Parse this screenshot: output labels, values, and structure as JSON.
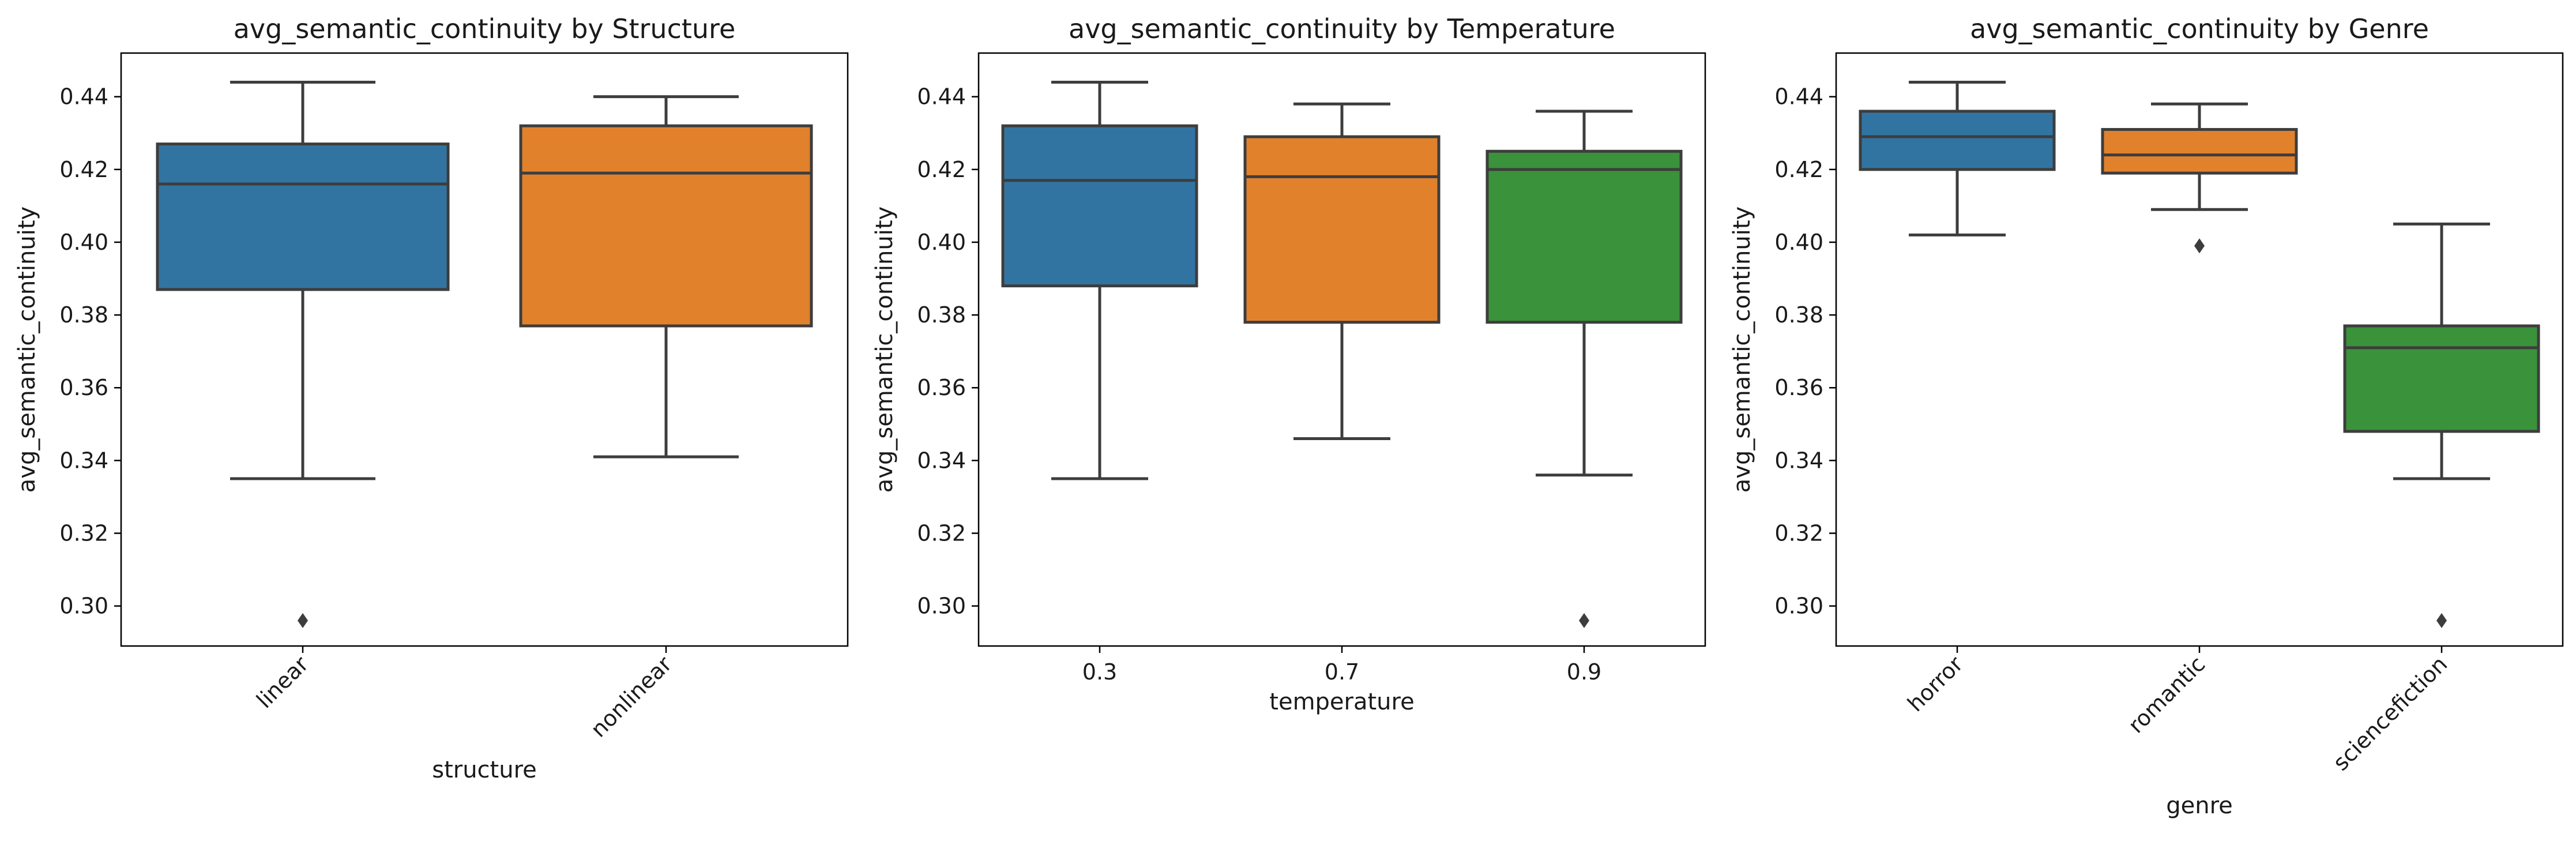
{
  "figure": {
    "background": "#ffffff",
    "panels": [
      {
        "title": "avg_semantic_continuity by Structure",
        "xlabel": "structure",
        "ylabel": "avg_semantic_continuity",
        "xtick_rotation": 45
      },
      {
        "title": "avg_semantic_continuity by Temperature",
        "xlabel": "temperature",
        "ylabel": "avg_semantic_continuity",
        "xtick_rotation": 0
      },
      {
        "title": "avg_semantic_continuity by Genre",
        "xlabel": "genre",
        "ylabel": "avg_semantic_continuity",
        "xtick_rotation": 45
      }
    ]
  },
  "colors": {
    "blue": "#3274a1",
    "orange": "#e1812c",
    "green": "#3a923a",
    "box_edge": "#3d3d3d",
    "axis": "#000000"
  },
  "chart_data": [
    {
      "type": "box",
      "title": "avg_semantic_continuity by Structure",
      "xlabel": "structure",
      "ylabel": "avg_semantic_continuity",
      "ylim": [
        0.289,
        0.452
      ],
      "yticks": [
        "0.30",
        "0.32",
        "0.34",
        "0.36",
        "0.38",
        "0.40",
        "0.42",
        "0.44"
      ],
      "categories": [
        "linear",
        "nonlinear"
      ],
      "colors": [
        "#3274a1",
        "#e1812c"
      ],
      "boxes": [
        {
          "whisker_low": 0.335,
          "q1": 0.387,
          "median": 0.416,
          "q3": 0.427,
          "whisker_high": 0.444,
          "outliers": [
            0.296
          ]
        },
        {
          "whisker_low": 0.341,
          "q1": 0.377,
          "median": 0.419,
          "q3": 0.432,
          "whisker_high": 0.44,
          "outliers": []
        }
      ],
      "grid": false
    },
    {
      "type": "box",
      "title": "avg_semantic_continuity by Temperature",
      "xlabel": "temperature",
      "ylabel": "avg_semantic_continuity",
      "ylim": [
        0.289,
        0.452
      ],
      "yticks": [
        "0.30",
        "0.32",
        "0.34",
        "0.36",
        "0.38",
        "0.40",
        "0.42",
        "0.44"
      ],
      "categories": [
        "0.3",
        "0.7",
        "0.9"
      ],
      "colors": [
        "#3274a1",
        "#e1812c",
        "#3a923a"
      ],
      "boxes": [
        {
          "whisker_low": 0.335,
          "q1": 0.388,
          "median": 0.417,
          "q3": 0.432,
          "whisker_high": 0.444,
          "outliers": []
        },
        {
          "whisker_low": 0.346,
          "q1": 0.378,
          "median": 0.418,
          "q3": 0.429,
          "whisker_high": 0.438,
          "outliers": []
        },
        {
          "whisker_low": 0.336,
          "q1": 0.378,
          "median": 0.42,
          "q3": 0.425,
          "whisker_high": 0.436,
          "outliers": [
            0.296
          ]
        }
      ],
      "grid": false
    },
    {
      "type": "box",
      "title": "avg_semantic_continuity by Genre",
      "xlabel": "genre",
      "ylabel": "avg_semantic_continuity",
      "ylim": [
        0.289,
        0.452
      ],
      "yticks": [
        "0.30",
        "0.32",
        "0.34",
        "0.36",
        "0.38",
        "0.40",
        "0.42",
        "0.44"
      ],
      "categories": [
        "horror",
        "romantic",
        "sciencefiction"
      ],
      "colors": [
        "#3274a1",
        "#e1812c",
        "#3a923a"
      ],
      "boxes": [
        {
          "whisker_low": 0.402,
          "q1": 0.42,
          "median": 0.429,
          "q3": 0.436,
          "whisker_high": 0.444,
          "outliers": []
        },
        {
          "whisker_low": 0.409,
          "q1": 0.419,
          "median": 0.424,
          "q3": 0.431,
          "whisker_high": 0.438,
          "outliers": [
            0.399
          ]
        },
        {
          "whisker_low": 0.335,
          "q1": 0.348,
          "median": 0.371,
          "q3": 0.377,
          "whisker_high": 0.405,
          "outliers": [
            0.296
          ]
        }
      ],
      "grid": false
    }
  ]
}
